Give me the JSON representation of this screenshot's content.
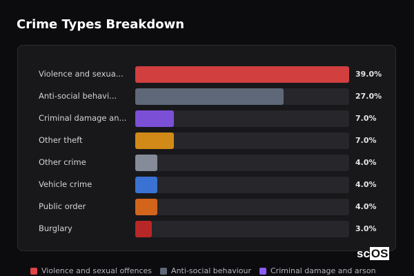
{
  "title": "Crime Types Breakdown",
  "chart_data": {
    "type": "bar",
    "orientation": "horizontal",
    "title": "Crime Types Breakdown",
    "categories": [
      "Violence and sexual offences",
      "Anti-social behaviour",
      "Criminal damage and arson",
      "Other theft",
      "Other crime",
      "Vehicle crime",
      "Public order",
      "Burglary"
    ],
    "display_labels": [
      "Violence and sexua...",
      "Anti-social behavi...",
      "Criminal damage an...",
      "Other theft",
      "Other crime",
      "Vehicle crime",
      "Public order",
      "Burglary"
    ],
    "values": [
      39.0,
      27.0,
      7.0,
      7.0,
      4.0,
      4.0,
      4.0,
      3.0
    ],
    "value_labels": [
      "39.0%",
      "27.0%",
      "7.0%",
      "7.0%",
      "4.0%",
      "4.0%",
      "4.0%",
      "3.0%"
    ],
    "colors": [
      "#d13f3f",
      "#5e6878",
      "#7b4fd6",
      "#d18a17",
      "#858b98",
      "#3a72d4",
      "#d2641c",
      "#b82727"
    ],
    "xlim": [
      0,
      39
    ],
    "grid": false,
    "legend_position": "bottom"
  },
  "legend": [
    {
      "label": "Violence and sexual offences",
      "color": "#e04444"
    },
    {
      "label": "Anti-social behaviour",
      "color": "#5e6878"
    },
    {
      "label": "Criminal damage and arson",
      "color": "#8b5cf6"
    }
  ],
  "logo": {
    "text_a": "sc",
    "text_b": "OS"
  }
}
